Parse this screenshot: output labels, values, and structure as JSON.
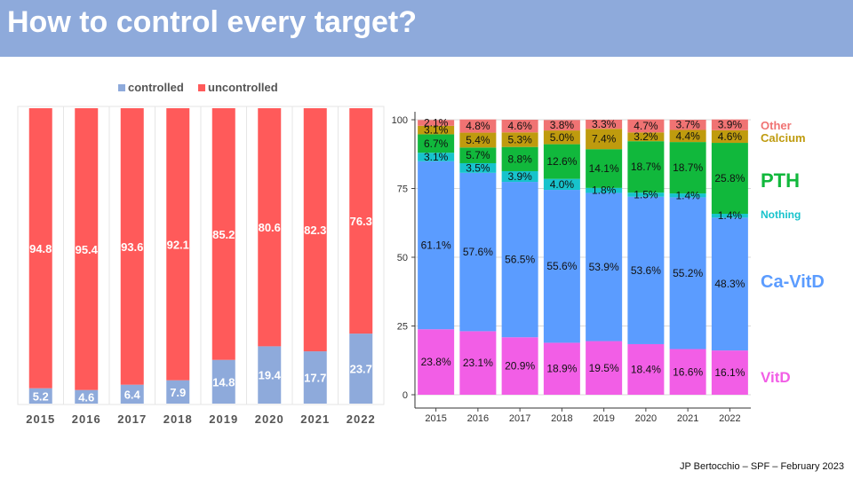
{
  "slide": {
    "title": "How to control every target?",
    "footer": "JP Bertocchio – SPF – February 2023"
  },
  "chart_data": [
    {
      "type": "bar",
      "stacked": true,
      "categories": [
        "2015",
        "2016",
        "2017",
        "2018",
        "2019",
        "2020",
        "2021",
        "2022"
      ],
      "series": [
        {
          "name": "controlled",
          "values": [
            5.2,
            4.6,
            6.4,
            7.9,
            14.8,
            19.4,
            17.7,
            23.7
          ],
          "color": "#8eaadb"
        },
        {
          "name": "uncontrolled",
          "values": [
            94.8,
            95.4,
            93.6,
            92.1,
            85.2,
            80.6,
            82.3,
            76.3
          ],
          "color": "#ff5a5a"
        }
      ],
      "ylim": [
        0,
        100
      ],
      "legend_position": "top",
      "grid": false
    },
    {
      "type": "bar",
      "stacked": true,
      "categories": [
        "2015",
        "2016",
        "2017",
        "2018",
        "2019",
        "2020",
        "2021",
        "2022"
      ],
      "yticks": [
        "0",
        "25",
        "50",
        "75",
        "100"
      ],
      "ylim": [
        0,
        100
      ],
      "grid": true,
      "legend_position": "right",
      "series": [
        {
          "name": "VitD",
          "values": [
            23.8,
            23.1,
            20.9,
            18.9,
            19.5,
            18.4,
            16.6,
            16.1
          ],
          "labels": [
            "23.8%",
            "23.1%",
            "20.9%",
            "18.9%",
            "19.5%",
            "18.4%",
            "16.6%",
            "16.1%"
          ],
          "color": "#f25ee6"
        },
        {
          "name": "Ca-VitD",
          "values": [
            61.1,
            57.6,
            56.5,
            55.6,
            53.9,
            53.6,
            55.2,
            48.3
          ],
          "labels": [
            "61.1%",
            "57.6%",
            "56.5%",
            "55.6%",
            "53.9%",
            "53.6%",
            "55.2%",
            "48.3%"
          ],
          "color": "#5b9cff"
        },
        {
          "name": "Nothing",
          "values": [
            3.1,
            3.5,
            3.9,
            4.0,
            1.8,
            1.5,
            1.4,
            1.4
          ],
          "labels": [
            "3.1%",
            "3.5%",
            "3.9%",
            "4.0%",
            "1.8%",
            "1.5%",
            "1.4%",
            "1.4%"
          ],
          "color": "#17c3cc"
        },
        {
          "name": "PTH",
          "values": [
            6.7,
            5.7,
            8.8,
            12.6,
            14.1,
            18.7,
            18.7,
            25.8
          ],
          "labels": [
            "6.7%",
            "5.7%",
            "8.8%",
            "12.6%",
            "14.1%",
            "18.7%",
            "18.7%",
            "25.8%"
          ],
          "color": "#11b83c"
        },
        {
          "name": "Calcium",
          "values": [
            3.1,
            5.4,
            5.3,
            5.0,
            7.4,
            3.2,
            4.4,
            4.6
          ],
          "labels": [
            "3.1%",
            "5.4%",
            "5.3%",
            "5.0%",
            "7.4%",
            "3.2%",
            "4.4%",
            "4.6%"
          ],
          "color": "#bf9b0e"
        },
        {
          "name": "Other",
          "values": [
            2.1,
            4.8,
            4.6,
            3.8,
            3.3,
            4.7,
            3.7,
            3.9
          ],
          "labels": [
            "2.1%",
            "4.8%",
            "4.6%",
            "3.8%",
            "3.3%",
            "4.7%",
            "3.7%",
            "3.9%"
          ],
          "color": "#f07373"
        }
      ]
    }
  ]
}
